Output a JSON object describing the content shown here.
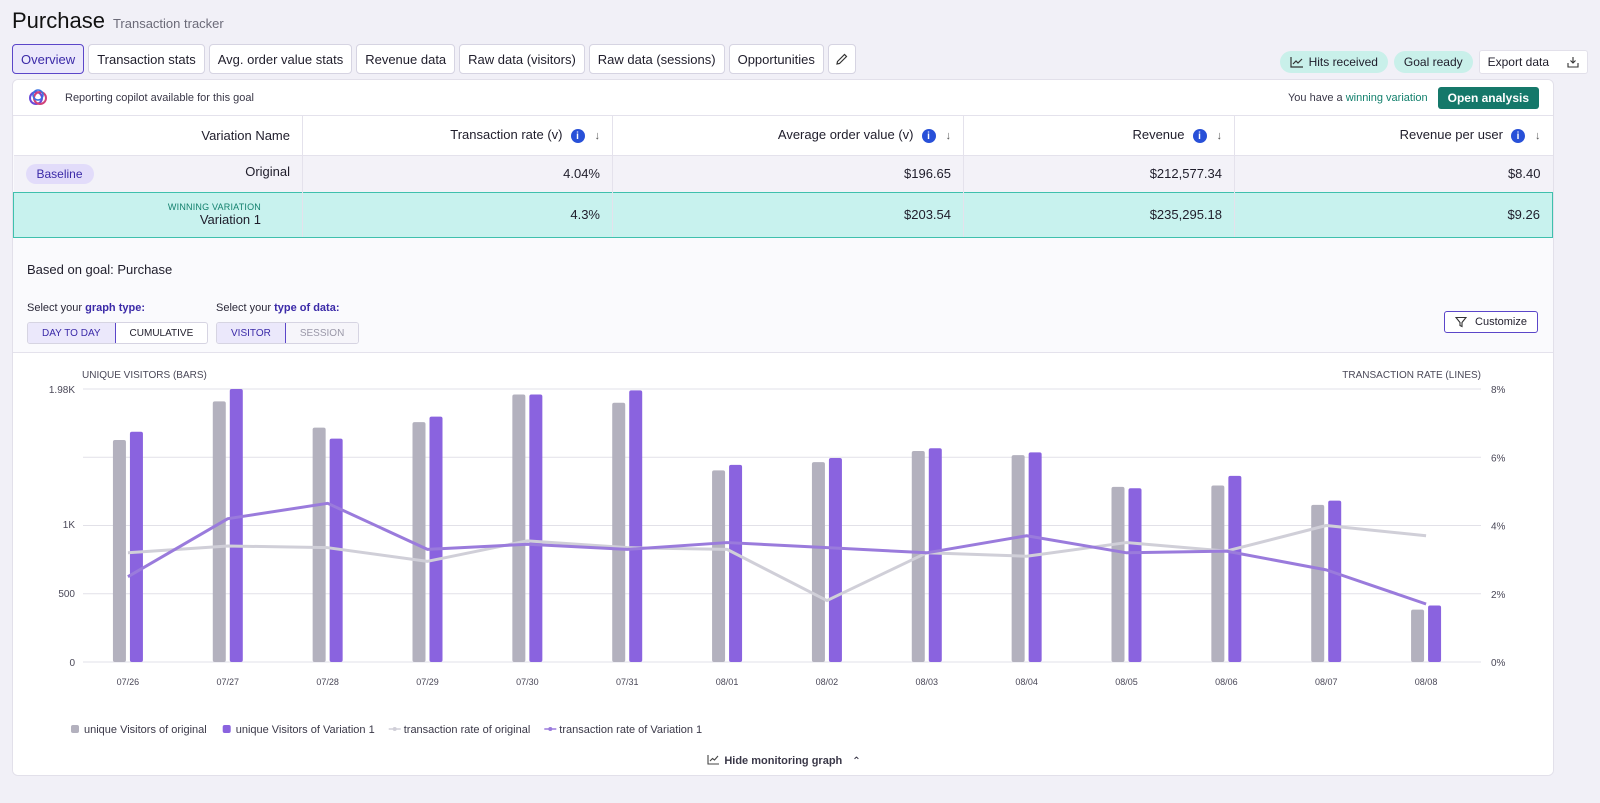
{
  "header": {
    "title": "Purchase",
    "subtitle": "Transaction tracker"
  },
  "tabs": [
    "Overview",
    "Transaction stats",
    "Avg. order value stats",
    "Revenue data",
    "Raw data (visitors)",
    "Raw data (sessions)",
    "Opportunities"
  ],
  "status": {
    "hits": "Hits received",
    "goal": "Goal ready",
    "export": "Export data"
  },
  "copilot": {
    "text": "Reporting copilot available for this goal",
    "prefix": "You have a",
    "winning": "winning variation",
    "button": "Open analysis"
  },
  "table": {
    "headers": [
      "Variation Name",
      "Transaction rate (v)",
      "Average order value (v)",
      "Revenue",
      "Revenue per user"
    ],
    "baseline": {
      "badge": "Baseline",
      "name": "Original",
      "rate": "4.04%",
      "aov": "$196.65",
      "revenue": "$212,577.34",
      "rpu": "$8.40"
    },
    "variation": {
      "label": "WINNING VARIATION",
      "name": "Variation 1",
      "rate": "4.3%",
      "aov": "$203.54",
      "revenue": "$235,295.18",
      "rpu": "$9.26"
    }
  },
  "controls": {
    "goal": "Based on goal: Purchase",
    "graph_prefix": "Select your",
    "graph_strong": "graph type:",
    "data_prefix": "Select your",
    "data_strong": "type of data:",
    "graph_types": [
      "DAY TO DAY",
      "CUMULATIVE"
    ],
    "data_types": [
      "VISITOR",
      "SESSION"
    ],
    "customize": "Customize"
  },
  "chart_data": {
    "type": "bar",
    "left_label": "UNIQUE VISITORS (BARS)",
    "right_label": "TRANSACTION RATE (LINES)",
    "categories": [
      "07/26",
      "07/27",
      "07/28",
      "07/29",
      "07/30",
      "07/31",
      "08/01",
      "08/02",
      "08/03",
      "08/04",
      "08/05",
      "08/06",
      "08/07",
      "08/08"
    ],
    "y_left": {
      "min": 0,
      "max": 1980,
      "ticks": [
        0,
        500,
        1000,
        1980
      ],
      "tick_labels": [
        "0",
        "500",
        "1K",
        "1.98K"
      ]
    },
    "y_right": {
      "min": 0,
      "max": 8,
      "ticks": [
        0,
        2,
        4,
        6,
        8
      ],
      "tick_labels": [
        "0%",
        "2%",
        "4%",
        "6%",
        "8%"
      ]
    },
    "series": [
      {
        "name": "unique Visitors of original",
        "kind": "bar",
        "color": "#b3b1be",
        "values": [
          1610,
          1890,
          1700,
          1740,
          1940,
          1880,
          1390,
          1450,
          1530,
          1500,
          1270,
          1280,
          1140,
          380
        ]
      },
      {
        "name": "unique Visitors of Variation 1",
        "kind": "bar",
        "color": "#8a63df",
        "values": [
          1670,
          1980,
          1620,
          1780,
          1940,
          1970,
          1430,
          1480,
          1550,
          1520,
          1260,
          1350,
          1170,
          410
        ]
      },
      {
        "name": "transaction rate of original",
        "kind": "line",
        "color": "#d0cfd8",
        "values": [
          3.2,
          3.4,
          3.35,
          2.95,
          3.55,
          3.35,
          3.3,
          1.8,
          3.2,
          3.1,
          3.5,
          3.25,
          4.0,
          3.7
        ]
      },
      {
        "name": "transaction rate of Variation 1",
        "kind": "line",
        "color": "#9a7bdc",
        "values": [
          2.5,
          4.2,
          4.65,
          3.3,
          3.45,
          3.3,
          3.5,
          3.35,
          3.2,
          3.7,
          3.2,
          3.25,
          2.7,
          1.7
        ]
      }
    ]
  },
  "footer": {
    "hide": "Hide monitoring graph"
  }
}
